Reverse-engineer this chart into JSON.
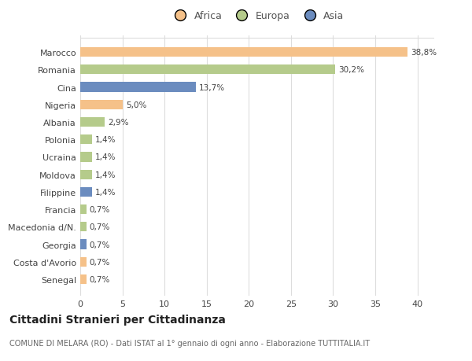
{
  "countries": [
    "Marocco",
    "Romania",
    "Cina",
    "Nigeria",
    "Albania",
    "Polonia",
    "Ucraina",
    "Moldova",
    "Filippine",
    "Francia",
    "Macedonia d/N.",
    "Georgia",
    "Costa d'Avorio",
    "Senegal"
  ],
  "values": [
    38.8,
    30.2,
    13.7,
    5.0,
    2.9,
    1.4,
    1.4,
    1.4,
    1.4,
    0.7,
    0.7,
    0.7,
    0.7,
    0.7
  ],
  "labels": [
    "38,8%",
    "30,2%",
    "13,7%",
    "5,0%",
    "2,9%",
    "1,4%",
    "1,4%",
    "1,4%",
    "1,4%",
    "0,7%",
    "0,7%",
    "0,7%",
    "0,7%",
    "0,7%"
  ],
  "colors": [
    "#f5c189",
    "#b5cb8b",
    "#6b8cbf",
    "#f5c189",
    "#b5cb8b",
    "#b5cb8b",
    "#b5cb8b",
    "#b5cb8b",
    "#6b8cbf",
    "#b5cb8b",
    "#b5cb8b",
    "#6b8cbf",
    "#f5c189",
    "#f5c189"
  ],
  "legend_labels": [
    "Africa",
    "Europa",
    "Asia"
  ],
  "legend_colors": [
    "#f5c189",
    "#b5cb8b",
    "#6b8cbf"
  ],
  "title": "Cittadini Stranieri per Cittadinanza",
  "subtitle": "COMUNE DI MELARA (RO) - Dati ISTAT al 1° gennaio di ogni anno - Elaborazione TUTTITALIA.IT",
  "xlim": [
    0,
    42
  ],
  "xticks": [
    0,
    5,
    10,
    15,
    20,
    25,
    30,
    35,
    40
  ],
  "background_color": "#ffffff",
  "grid_color": "#dddddd",
  "bar_height": 0.55
}
